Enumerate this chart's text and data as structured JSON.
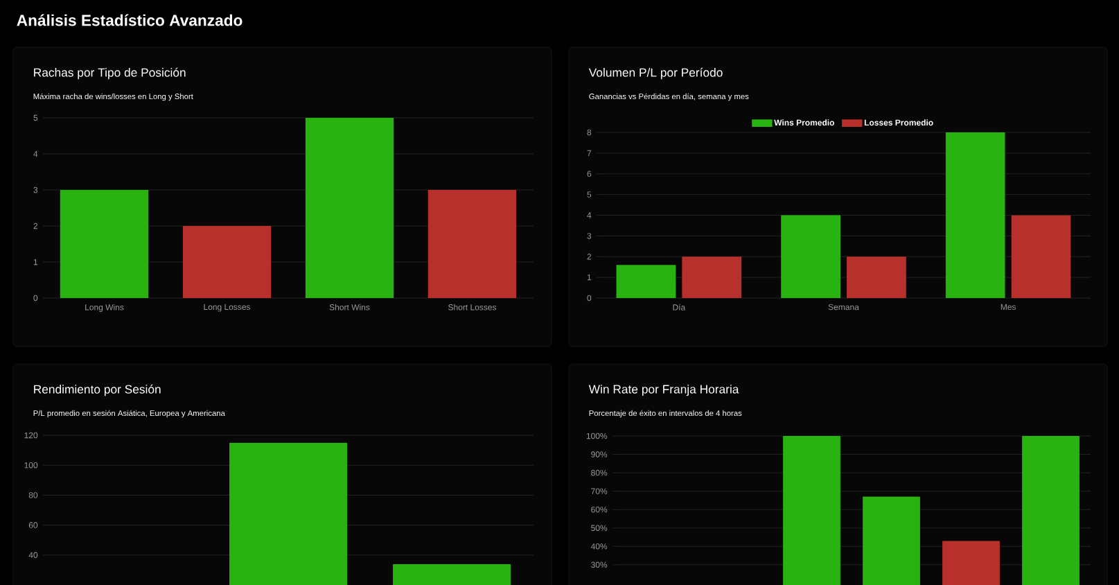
{
  "chart_data": [
    {
      "type": "other",
      "title": "Análisis Estadístico Avanzado"
    },
    {
      "type": "bar",
      "title": "Rachas por Tipo de Posición",
      "subtitle": "Máxima racha de wins/losses en Long y Short",
      "categories": [
        "Long Wins",
        "Long Losses",
        "Short Wins",
        "Short Losses"
      ],
      "values": [
        3,
        2,
        5,
        3
      ],
      "colors": [
        "#29b311",
        "#b8302b",
        "#29b311",
        "#b8302b"
      ],
      "ylim": [
        0,
        5
      ],
      "yticks": [
        0,
        1,
        2,
        3,
        4,
        5
      ],
      "grid": "y"
    },
    {
      "type": "bar",
      "title": "Volumen P/L por Período",
      "subtitle": "Ganancias vs Pérdidas en día, semana y mes",
      "categories": [
        "Día",
        "Semana",
        "Mes"
      ],
      "series": [
        {
          "name": "Wins Promedio",
          "color": "#29b311",
          "values": [
            1.6,
            4,
            8
          ]
        },
        {
          "name": "Losses Promedio",
          "color": "#b8302b",
          "values": [
            2,
            2,
            4
          ]
        }
      ],
      "ylim": [
        0,
        8
      ],
      "yticks": [
        0,
        1,
        2,
        3,
        4,
        5,
        6,
        7,
        8
      ],
      "grid": "y",
      "legend": "top"
    },
    {
      "type": "bar",
      "title": "Rendimiento por Sesión",
      "subtitle": "P/L promedio en sesión Asiática, Europea y Americana",
      "categories": [
        null,
        null,
        null
      ],
      "values": [
        null,
        115,
        34
      ],
      "colors": [
        "#29b311",
        "#29b311",
        "#29b311"
      ],
      "ylim": [
        20,
        120
      ],
      "yticks": [
        40,
        60,
        80,
        100,
        120
      ],
      "grid": "y"
    },
    {
      "type": "bar",
      "title": "Win Rate por Franja Horaria",
      "subtitle": "Porcentaje de éxito en intervalos de 4 horas",
      "categories": [
        null,
        null,
        null,
        null,
        null,
        null
      ],
      "values": [
        null,
        null,
        100,
        67,
        43,
        100
      ],
      "colors": [
        "#29b311",
        "#29b311",
        "#29b311",
        "#29b311",
        "#b8302b",
        "#29b311"
      ],
      "ylim": [
        19,
        100
      ],
      "yticks": [
        {
          "value": 30,
          "label": "30%"
        },
        {
          "value": 40,
          "label": "40%"
        },
        {
          "value": 50,
          "label": "50%"
        },
        {
          "value": 60,
          "label": "60%"
        },
        {
          "value": 70,
          "label": "70%"
        },
        {
          "value": 80,
          "label": "80%"
        },
        {
          "value": 90,
          "label": "90%"
        },
        {
          "value": 100,
          "label": "100%"
        }
      ],
      "grid": "y"
    }
  ]
}
